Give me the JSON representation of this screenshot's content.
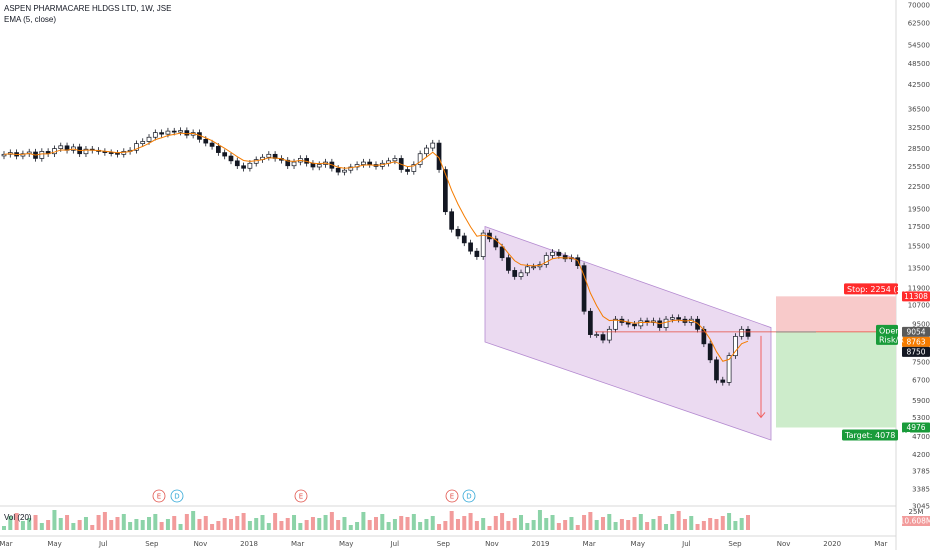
{
  "header": {
    "symbol_line": "ASPEN PHARMACARE HLDGS LTD, 1W, JSE",
    "ema_line": "EMA (5, close)",
    "vol_line": "Vol (20)"
  },
  "colors": {
    "up": "#ffffff",
    "down": "#131722",
    "ema": "#f57c00",
    "channel_fill": "#e8d3ef",
    "channel_line": "#b48ad0",
    "stop_zone": "#f8caca",
    "target_zone": "#cdeccb",
    "vol_up": "#f29b9b",
    "vol_down": "#8cd3a8",
    "stop_red": "#ff2b2b",
    "target_green": "#199b3a",
    "arrow": "#f06060"
  },
  "chart_data": {
    "type": "candlestick",
    "symbol": "ASPEN PHARMACARE HLDGS LTD",
    "interval": "1W",
    "exchange": "JSE",
    "y_axis_ticks": [
      70000,
      62500,
      54500,
      48500,
      42500,
      36500,
      32500,
      28500,
      25500,
      22500,
      19500,
      17500,
      15500,
      13500,
      11900,
      10700,
      9500,
      8500,
      7500,
      6700,
      5900,
      5300,
      4700,
      4200,
      3785,
      3385,
      3045
    ],
    "y_range": [
      2900,
      72000
    ],
    "y_scale": "log",
    "x_axis_labels": [
      "Mar",
      "May",
      "Jul",
      "Sep",
      "Nov",
      "2018",
      "Mar",
      "May",
      "Jul",
      "Sep",
      "Nov",
      "2019",
      "Mar",
      "May",
      "Jul",
      "Sep",
      "Nov",
      "2020",
      "Mar"
    ],
    "series": [
      {
        "name": "Price",
        "type": "candlestick",
        "close_approx": [
          27500,
          27800,
          27200,
          27600,
          27900,
          26800,
          28000,
          27600,
          28500,
          29000,
          28200,
          28800,
          27600,
          28400,
          28200,
          28000,
          27800,
          27700,
          27500,
          28000,
          28200,
          29400,
          29800,
          30600,
          31500,
          31200,
          31800,
          31600,
          31900,
          31000,
          31500,
          30200,
          29500,
          28900,
          27800,
          27200,
          26400,
          25600,
          25200,
          26000,
          26600,
          27000,
          27500,
          26800,
          26500,
          25600,
          26200,
          26800,
          26000,
          25400,
          25800,
          26200,
          25200,
          24600,
          24900,
          25400,
          25800,
          26200,
          25800,
          25500,
          26000,
          26400,
          26800,
          25000,
          24700,
          25800,
          27600,
          28600,
          29500,
          25000,
          19200,
          17200,
          16500,
          15800,
          15000,
          14500,
          16800,
          16200,
          15400,
          14400,
          13300,
          12800,
          13100,
          13600,
          13600,
          13800,
          14600,
          14900,
          14600,
          14300,
          14400,
          13700,
          10300,
          8900,
          8900,
          8600,
          9200,
          9800,
          9600,
          9500,
          9400,
          9700,
          9600,
          9700,
          9300,
          9800,
          9900,
          9800,
          9600,
          9800,
          9200,
          8400,
          7600,
          6700,
          6600,
          7800,
          8800,
          9200,
          8800
        ],
        "last_close": 8750
      },
      {
        "name": "EMA (5, close)",
        "type": "line",
        "last": 8763
      }
    ],
    "ema": {
      "period": 5,
      "source": "close",
      "last": 8763
    },
    "volume": {
      "length": 20,
      "current_label": "10.608M",
      "axis_label": "25M"
    },
    "channel": {
      "type": "descending parallel channel",
      "upper": [
        [
          "2018-11",
          17500
        ],
        [
          "2019-10",
          9300
        ]
      ],
      "lower": [
        [
          "2018-11",
          8500
        ],
        [
          "2019-10",
          4600
        ]
      ]
    },
    "position": {
      "type": "short",
      "entry": 9054,
      "stop": 11308,
      "target": 4976,
      "stop_label": "Stop: 2254 (24",
      "target_label": "Target: 4078 (45",
      "open_label": "Open",
      "rr_label": "Risk/R"
    },
    "price_tags": [
      {
        "value": "11308",
        "kind": "stop"
      },
      {
        "value": "9054",
        "kind": "entry"
      },
      {
        "value": "8763",
        "kind": "ema"
      },
      {
        "value": "8750",
        "kind": "last"
      },
      {
        "value": "4976",
        "kind": "target"
      }
    ],
    "events": [
      {
        "type": "E",
        "at": "2017-09"
      },
      {
        "type": "D",
        "at": "2017-10"
      },
      {
        "type": "E",
        "at": "2018-03"
      },
      {
        "type": "E",
        "at": "2018-09"
      },
      {
        "type": "D",
        "at": "2018-09"
      }
    ]
  }
}
